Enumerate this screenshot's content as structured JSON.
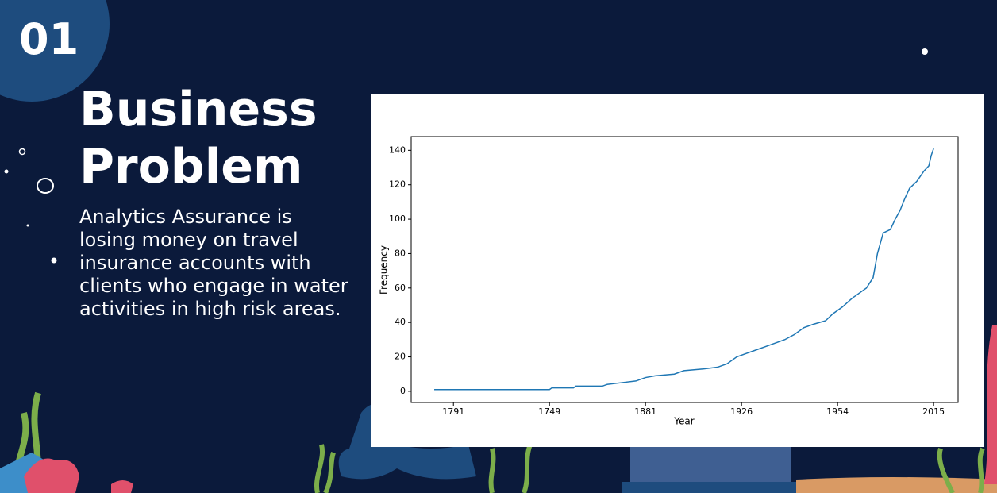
{
  "slide_number": "01",
  "title": "Business Problem",
  "body": "Analytics Assurance is losing money on travel insurance accounts with clients who engage in water activities in high risk areas.",
  "chart_data": {
    "type": "line",
    "x_label": "Year",
    "y_label": "Frequency",
    "x": [
      16,
      40,
      40.5,
      45,
      45.5,
      51,
      52,
      55,
      58,
      60,
      62,
      66,
      68,
      72,
      75,
      77,
      79,
      81,
      83,
      85,
      87,
      89,
      91,
      93,
      95,
      97.5,
      99,
      101,
      103,
      104.5,
      106,
      107.4,
      108.3,
      109.5,
      111,
      112,
      113,
      114,
      115,
      116.5,
      118,
      119,
      119.5,
      120
    ],
    "values": [
      1,
      1,
      2,
      2,
      3,
      3,
      4,
      5,
      6,
      8,
      9,
      10,
      12,
      13,
      14,
      16,
      20,
      22,
      24,
      26,
      28,
      30,
      33,
      37,
      39,
      41,
      45,
      49,
      54,
      57,
      60,
      66,
      80,
      92,
      94,
      100,
      105,
      112,
      118,
      122,
      128,
      131,
      137,
      141
    ],
    "color": "#1f77b4",
    "xlim": [
      11.2,
      125.1
    ],
    "xticks": [
      {
        "value": 20,
        "label": "1791"
      },
      {
        "value": 40,
        "label": "1749"
      },
      {
        "value": 60,
        "label": "1881"
      },
      {
        "value": 80,
        "label": "1926"
      },
      {
        "value": 100,
        "label": "1954"
      },
      {
        "value": 120,
        "label": "2015"
      }
    ],
    "ylim": [
      -6.5,
      148
    ],
    "yticks": [
      0,
      20,
      40,
      60,
      80,
      100,
      120,
      140
    ]
  }
}
